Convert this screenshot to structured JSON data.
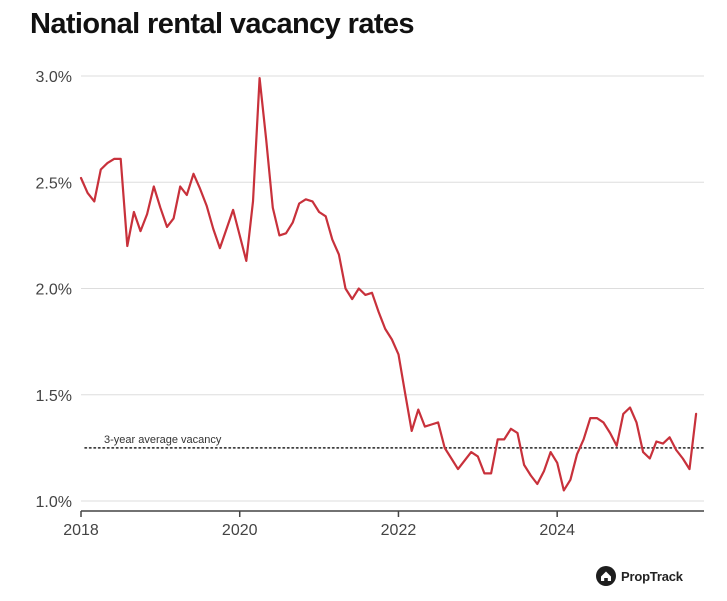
{
  "chart_data": {
    "type": "line",
    "title": "National rental vacancy rates",
    "xlabel": "",
    "ylabel": "",
    "xlim": [
      2018.0,
      2025.85
    ],
    "ylim": [
      0.95,
      3.05
    ],
    "x_ticks": [
      2018,
      2020,
      2022,
      2024
    ],
    "x_tick_labels": [
      "2018",
      "2020",
      "2022",
      "2024"
    ],
    "y_ticks": [
      1.0,
      1.5,
      2.0,
      2.5,
      3.0
    ],
    "y_tick_labels": [
      "1.0%",
      "1.5%",
      "2.0%",
      "2.5%",
      "3.0%"
    ],
    "grid": "horizontal",
    "line_color": "#c8313b",
    "series": [
      {
        "x": [
          2018.0,
          2018.083,
          2018.167,
          2018.25,
          2018.333,
          2018.417,
          2018.5,
          2018.583,
          2018.667,
          2018.75,
          2018.833,
          2018.917,
          2019.0,
          2019.083,
          2019.167,
          2019.25,
          2019.333,
          2019.417,
          2019.5,
          2019.583,
          2019.667,
          2019.75,
          2019.833,
          2019.917,
          2020.0,
          2020.083,
          2020.167,
          2020.25,
          2020.333,
          2020.417,
          2020.5,
          2020.583,
          2020.667,
          2020.75,
          2020.833,
          2020.917,
          2021.0,
          2021.083,
          2021.167,
          2021.25,
          2021.333,
          2021.417,
          2021.5,
          2021.583,
          2021.667,
          2021.75,
          2021.833,
          2021.917,
          2022.0,
          2022.083,
          2022.167,
          2022.25,
          2022.333,
          2022.417,
          2022.5,
          2022.583,
          2022.667,
          2022.75,
          2022.833,
          2022.917,
          2023.0,
          2023.083,
          2023.167,
          2023.25,
          2023.333,
          2023.417,
          2023.5,
          2023.583,
          2023.667,
          2023.75,
          2023.833,
          2023.917,
          2024.0,
          2024.083,
          2024.167,
          2024.25,
          2024.333,
          2024.417,
          2024.5,
          2024.583,
          2024.667,
          2024.75,
          2024.833,
          2024.917,
          2025.0,
          2025.083,
          2025.167,
          2025.25,
          2025.333,
          2025.417,
          2025.5,
          2025.583,
          2025.667,
          2025.75
        ],
        "values": [
          2.52,
          2.45,
          2.41,
          2.56,
          2.59,
          2.61,
          2.61,
          2.2,
          2.36,
          2.27,
          2.35,
          2.48,
          2.38,
          2.29,
          2.33,
          2.48,
          2.44,
          2.54,
          2.47,
          2.39,
          2.28,
          2.19,
          2.28,
          2.37,
          2.25,
          2.13,
          2.41,
          2.99,
          2.7,
          2.38,
          2.25,
          2.26,
          2.31,
          2.4,
          2.42,
          2.41,
          2.36,
          2.34,
          2.23,
          2.16,
          2.0,
          1.95,
          2.0,
          1.97,
          1.98,
          1.89,
          1.81,
          1.76,
          1.69,
          1.51,
          1.33,
          1.43,
          1.35,
          1.36,
          1.37,
          1.25,
          1.2,
          1.15,
          1.19,
          1.23,
          1.21,
          1.13,
          1.13,
          1.29,
          1.29,
          1.34,
          1.32,
          1.17,
          1.12,
          1.08,
          1.14,
          1.23,
          1.18,
          1.05,
          1.1,
          1.22,
          1.29,
          1.39,
          1.39,
          1.37,
          1.32,
          1.26,
          1.41,
          1.44,
          1.37,
          1.23,
          1.2,
          1.28,
          1.27,
          1.3,
          1.24,
          1.2,
          1.15,
          1.41
        ]
      }
    ],
    "reference_line": {
      "label": "3-year average vacancy",
      "value": 1.25,
      "style": "dotted"
    }
  },
  "brand": {
    "name": "PropTrack",
    "logo_icon": "house-logo-icon"
  }
}
